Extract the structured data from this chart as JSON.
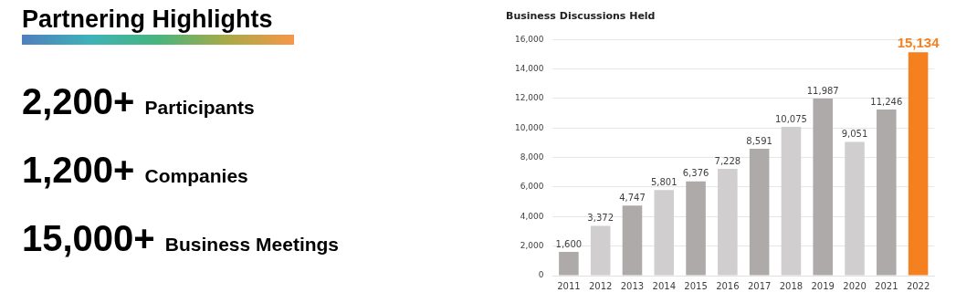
{
  "chart_data": [
    {
      "type": "other",
      "title": "Partnering Highlights",
      "annotations": [
        "2,200+ Participants",
        "1,200+ Companies",
        "15,000+ Business Meetings"
      ]
    },
    {
      "type": "bar",
      "title": "Business Discussions Held",
      "categories": [
        "2011",
        "2012",
        "2013",
        "2014",
        "2015",
        "2016",
        "2017",
        "2018",
        "2019",
        "2020",
        "2021",
        "2022"
      ],
      "values": [
        1600,
        3372,
        4747,
        5801,
        6376,
        7228,
        8591,
        10075,
        11987,
        9051,
        11246,
        15134
      ],
      "colors": [
        "#aeaaaa",
        "#d0cece",
        "#aeaaaa",
        "#d0cece",
        "#aeaaaa",
        "#d0cece",
        "#aeaaaa",
        "#d0cece",
        "#aeaaaa",
        "#d0cece",
        "#aeaaaa",
        "#f4801f"
      ],
      "ylim": [
        0,
        16000
      ],
      "yticks": [
        {
          "value": 0,
          "label": "0"
        },
        {
          "value": 2000,
          "label": "2,000"
        },
        {
          "value": 4000,
          "label": "4,000"
        },
        {
          "value": 6000,
          "label": "6,000"
        },
        {
          "value": 8000,
          "label": "8,000"
        },
        {
          "value": 10000,
          "label": "10,000"
        },
        {
          "value": 12000,
          "label": "12,000"
        },
        {
          "value": 14000,
          "label": "14,000"
        },
        {
          "value": 16000,
          "label": "16,000"
        }
      ],
      "value_labels": [
        "1,600",
        "3,372",
        "4,747",
        "5,801",
        "6,376",
        "7,228",
        "8,591",
        "10,075",
        "11,987",
        "9,051",
        "11,246",
        "15,134"
      ],
      "grid": "y",
      "legend": false
    }
  ]
}
